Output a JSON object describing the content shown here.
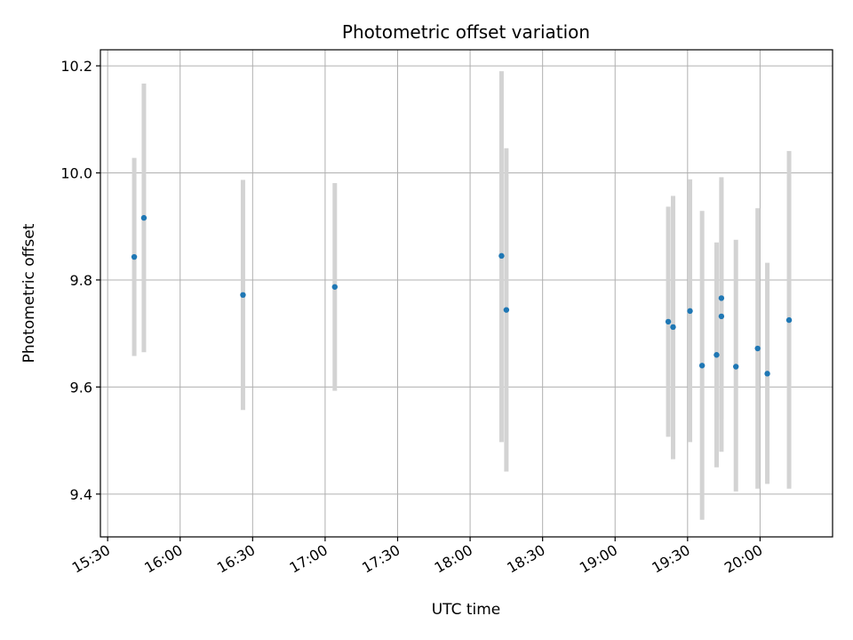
{
  "chart_data": {
    "type": "scatter",
    "title": "Photometric offset variation",
    "xlabel": "UTC time",
    "ylabel": "Photometric offset",
    "grid": true,
    "legend": "none",
    "x_type": "time",
    "xlim": [
      "15:27",
      "20:30"
    ],
    "ylim": [
      9.32,
      10.23
    ],
    "x_ticks": [
      "15:30",
      "16:00",
      "16:30",
      "17:00",
      "17:30",
      "18:00",
      "18:30",
      "19:00",
      "19:30",
      "20:00"
    ],
    "y_ticks": [
      9.4,
      9.6,
      9.8,
      10.0,
      10.2
    ],
    "y_tick_labels": [
      "9.4",
      "9.6",
      "9.8",
      "10.0",
      "10.2"
    ],
    "colors": {
      "point": "#1f77b4",
      "errorbar": "#d3d3d3",
      "grid": "#b0b0b0"
    },
    "series": [
      {
        "points": [
          {
            "x": "15:41",
            "y": 9.843,
            "low": 9.658,
            "high": 10.028
          },
          {
            "x": "15:45",
            "y": 9.916,
            "low": 9.665,
            "high": 10.167
          },
          {
            "x": "16:26",
            "y": 9.772,
            "low": 9.557,
            "high": 9.987
          },
          {
            "x": "17:04",
            "y": 9.787,
            "low": 9.593,
            "high": 9.981
          },
          {
            "x": "18:13",
            "y": 9.845,
            "low": 9.497,
            "high": 10.19
          },
          {
            "x": "18:15",
            "y": 9.744,
            "low": 9.442,
            "high": 10.046
          },
          {
            "x": "19:22",
            "y": 9.722,
            "low": 9.507,
            "high": 9.937
          },
          {
            "x": "19:24",
            "y": 9.712,
            "low": 9.465,
            "high": 9.957
          },
          {
            "x": "19:31",
            "y": 9.742,
            "low": 9.497,
            "high": 9.988
          },
          {
            "x": "19:36",
            "y": 9.64,
            "low": 9.352,
            "high": 9.929
          },
          {
            "x": "19:42",
            "y": 9.66,
            "low": 9.45,
            "high": 9.87
          },
          {
            "x": "19:44",
            "y": 9.732,
            "low": 9.479,
            "high": 9.985
          },
          {
            "x": "19:44",
            "y": 9.766,
            "low": 9.54,
            "high": 9.992
          },
          {
            "x": "19:50",
            "y": 9.638,
            "low": 9.405,
            "high": 9.875
          },
          {
            "x": "19:59",
            "y": 9.672,
            "low": 9.41,
            "high": 9.934
          },
          {
            "x": "20:03",
            "y": 9.625,
            "low": 9.419,
            "high": 9.832
          },
          {
            "x": "20:12",
            "y": 9.725,
            "low": 9.41,
            "high": 10.041
          }
        ]
      }
    ]
  }
}
